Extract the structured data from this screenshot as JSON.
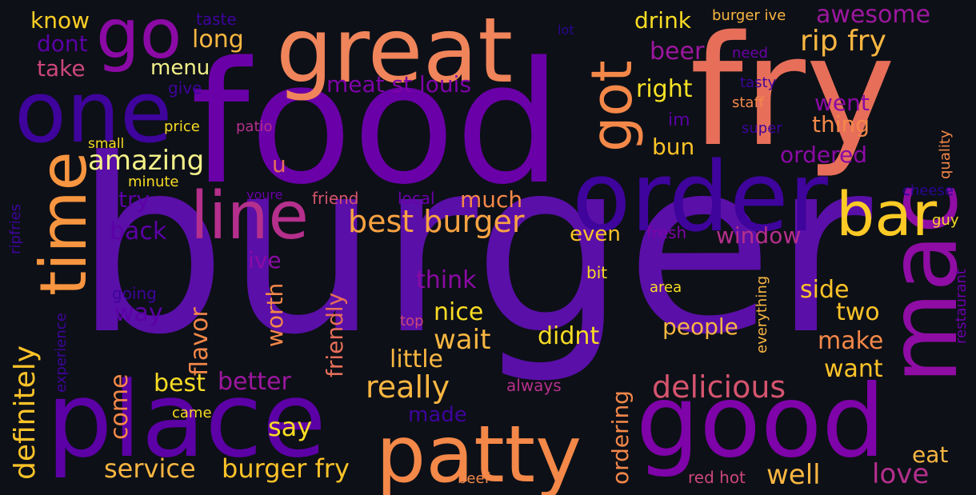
{
  "words": [
    {
      "text": "burger",
      "color": "#5a0fa8"
    },
    {
      "text": "food",
      "color": "#6a00a8"
    },
    {
      "text": "fry",
      "color": "#e76f5a"
    },
    {
      "text": "great",
      "color": "#f0845a"
    },
    {
      "text": "order",
      "color": "#3e049c"
    },
    {
      "text": "place",
      "color": "#5c01a6"
    },
    {
      "text": "good",
      "color": "#7e03a8"
    },
    {
      "text": "mac",
      "color": "#8f0da4"
    },
    {
      "text": "patty",
      "color": "#f48849"
    },
    {
      "text": "one",
      "color": "#3e049c"
    },
    {
      "text": "go",
      "color": "#8b0aa5"
    },
    {
      "text": "time",
      "color": "#f89540"
    },
    {
      "text": "line",
      "color": "#b52f8c"
    },
    {
      "text": "bar",
      "color": "#fdca26"
    },
    {
      "text": "got",
      "color": "#f48849"
    },
    {
      "text": "best burger",
      "color": "#f9a242"
    },
    {
      "text": "delicious",
      "color": "#d5546e"
    },
    {
      "text": "definitely",
      "color": "#fdc328"
    },
    {
      "text": "rip fry",
      "color": "#f9b641"
    },
    {
      "text": "awesome",
      "color": "#9c179e"
    },
    {
      "text": "know",
      "color": "#fcce25"
    },
    {
      "text": "dont",
      "color": "#5c01a6"
    },
    {
      "text": "take",
      "color": "#cc4778"
    },
    {
      "text": "menu",
      "color": "#f3f089"
    },
    {
      "text": "long",
      "color": "#f9b641"
    },
    {
      "text": "meat st louis",
      "color": "#7e03a8"
    },
    {
      "text": "drink",
      "color": "#f9dc24"
    },
    {
      "text": "burger ive",
      "color": "#f9b641"
    },
    {
      "text": "lot",
      "color": "#2a0593"
    },
    {
      "text": "beer",
      "color": "#9c179e"
    },
    {
      "text": "need",
      "color": "#6a00a8"
    },
    {
      "text": "right",
      "color": "#f7e225"
    },
    {
      "text": "tasty",
      "color": "#3e049c"
    },
    {
      "text": "staff",
      "color": "#f48849"
    },
    {
      "text": "went",
      "color": "#8b0aa5"
    },
    {
      "text": "im",
      "color": "#5c01a6"
    },
    {
      "text": "thing",
      "color": "#f48849"
    },
    {
      "text": "super",
      "color": "#3e049c"
    },
    {
      "text": "quality",
      "color": "#f48849"
    },
    {
      "text": "bun",
      "color": "#fdc328"
    },
    {
      "text": "ordered",
      "color": "#8b0aa5"
    },
    {
      "text": "cheese",
      "color": "#2a0593"
    },
    {
      "text": "guy",
      "color": "#f9dc24"
    },
    {
      "text": "amazing",
      "color": "#f3f089"
    },
    {
      "text": "small",
      "color": "#f9dc24"
    },
    {
      "text": "price",
      "color": "#f9dc24"
    },
    {
      "text": "patio",
      "color": "#b52f8c"
    },
    {
      "text": "minute",
      "color": "#f9dc24"
    },
    {
      "text": "u",
      "color": "#e76f5a"
    },
    {
      "text": "try",
      "color": "#5c01a6"
    },
    {
      "text": "youre",
      "color": "#6a00a8"
    },
    {
      "text": "friend",
      "color": "#d5546e"
    },
    {
      "text": "local",
      "color": "#6a00a8"
    },
    {
      "text": "much",
      "color": "#f48849"
    },
    {
      "text": "back",
      "color": "#5c01a6"
    },
    {
      "text": "even",
      "color": "#fdc328"
    },
    {
      "text": "fresh",
      "color": "#7e03a8"
    },
    {
      "text": "window",
      "color": "#b52f8c"
    },
    {
      "text": "taste",
      "color": "#3e049c"
    },
    {
      "text": "give",
      "color": "#3e049c"
    },
    {
      "text": "ripfries",
      "color": "#3e049c"
    },
    {
      "text": "ive",
      "color": "#8b0aa5"
    },
    {
      "text": "think",
      "color": "#8b0aa5"
    },
    {
      "text": "bit",
      "color": "#f9dc24"
    },
    {
      "text": "area",
      "color": "#f9dc24"
    },
    {
      "text": "side",
      "color": "#fdc328"
    },
    {
      "text": "going",
      "color": "#3e049c"
    },
    {
      "text": "way",
      "color": "#5c01a6"
    },
    {
      "text": "worth",
      "color": "#f48849"
    },
    {
      "text": "friendly",
      "color": "#e76f5a"
    },
    {
      "text": "nice",
      "color": "#f9dc24"
    },
    {
      "text": "two",
      "color": "#fdc328"
    },
    {
      "text": "top",
      "color": "#cc4778"
    },
    {
      "text": "experience",
      "color": "#3e049c"
    },
    {
      "text": "wait",
      "color": "#f9b641"
    },
    {
      "text": "didnt",
      "color": "#f9dc24"
    },
    {
      "text": "people",
      "color": "#f9b641"
    },
    {
      "text": "everything",
      "color": "#f9b641"
    },
    {
      "text": "restaurant",
      "color": "#6a00a8"
    },
    {
      "text": "flavor",
      "color": "#f48849"
    },
    {
      "text": "little",
      "color": "#f9b641"
    },
    {
      "text": "make",
      "color": "#f48849"
    },
    {
      "text": "want",
      "color": "#fdc328"
    },
    {
      "text": "best",
      "color": "#f9dc24"
    },
    {
      "text": "better",
      "color": "#9c179e"
    },
    {
      "text": "really",
      "color": "#f9b641"
    },
    {
      "text": "always",
      "color": "#b52f8c"
    },
    {
      "text": "come",
      "color": "#f48849"
    },
    {
      "text": "came",
      "color": "#f9dc24"
    },
    {
      "text": "made",
      "color": "#3e049c"
    },
    {
      "text": "ordering",
      "color": "#f48849"
    },
    {
      "text": "say",
      "color": "#f9dc24"
    },
    {
      "text": "eat",
      "color": "#f9b641"
    },
    {
      "text": "service",
      "color": "#f9b641"
    },
    {
      "text": "burger fry",
      "color": "#fdc328"
    },
    {
      "text": "well",
      "color": "#f9b641"
    },
    {
      "text": "love",
      "color": "#b52f8c"
    },
    {
      "text": "beef",
      "color": "#f48849"
    },
    {
      "text": "red hot",
      "color": "#cc4778"
    }
  ]
}
